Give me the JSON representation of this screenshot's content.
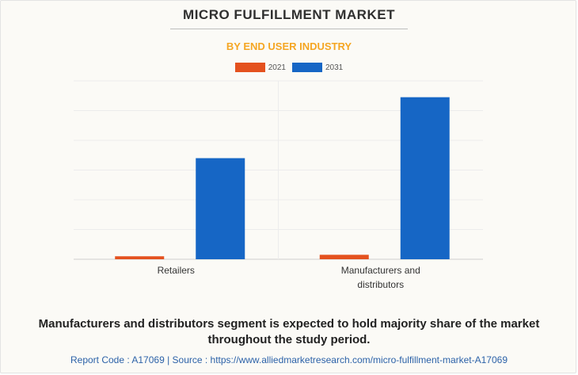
{
  "chart_data": {
    "type": "bar",
    "title": "MICRO FULFILLMENT MARKET",
    "subtitle": "BY END USER INDUSTRY",
    "categories": [
      "Retailers",
      "Manufacturers and distributors"
    ],
    "category_lines": [
      [
        "Retailers"
      ],
      [
        "Manufacturers and",
        "distributors"
      ]
    ],
    "series": [
      {
        "name": "2021",
        "color": "#e4511e",
        "values": [
          1,
          1.5
        ]
      },
      {
        "name": "2031",
        "color": "#1666c5",
        "values": [
          34,
          54.5
        ]
      }
    ],
    "ylim": [
      0,
      60
    ],
    "gridlines": [
      0,
      10,
      20,
      30,
      40,
      50,
      60
    ],
    "grid": true,
    "legend_position": "top-center"
  },
  "footer": {
    "note": "Manufacturers and distributors segment is expected to hold majority share of the market throughout the study period.",
    "source": "Report Code : A17069  |  Source : https://www.alliedmarketresearch.com/micro-fulfillment-market-A17069"
  }
}
